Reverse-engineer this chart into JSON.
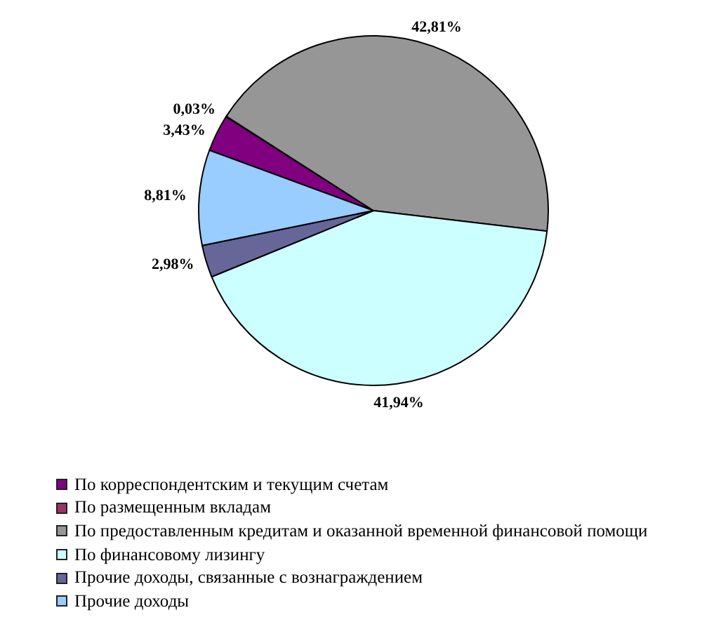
{
  "chart_data": {
    "type": "pie",
    "categories": [
      "По корреспондентским и текущим счетам",
      "По размещенным вкладам",
      "По предоставленным кредитам и оказанной временной финансовой помощи",
      "По финансовому лизингу",
      "Прочие доходы, связанные с вознаграждением",
      "Прочие доходы"
    ],
    "values": [
      3.43,
      0.03,
      42.81,
      41.94,
      2.98,
      8.81
    ],
    "colors": [
      "#800080",
      "#993366",
      "#969696",
      "#ccffff",
      "#666699",
      "#99ccff"
    ],
    "value_labels": [
      "3,43%",
      "0,03%",
      "42,81%",
      "41,94%",
      "2,98%",
      "8,81%"
    ],
    "legend": "bottom"
  }
}
